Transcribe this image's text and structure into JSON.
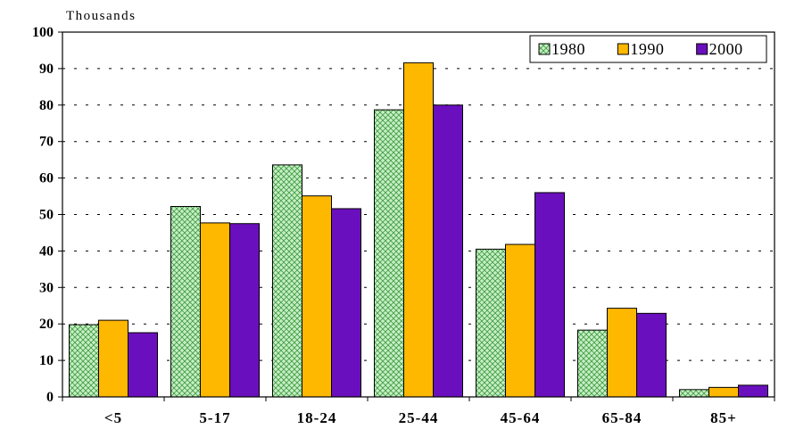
{
  "chart_data": {
    "type": "bar",
    "ylabel": "Thousands",
    "categories": [
      "<5",
      "5-17",
      "18-24",
      "25-44",
      "45-64",
      "65-84",
      "85+"
    ],
    "series": [
      {
        "name": "1980",
        "values": [
          19.8,
          52.2,
          63.6,
          78.7,
          40.5,
          18.3,
          2.0
        ],
        "color": "#b3e6b3",
        "pattern": "crosshatch"
      },
      {
        "name": "1990",
        "values": [
          21.0,
          47.7,
          55.1,
          91.6,
          41.8,
          24.3,
          2.6
        ],
        "color": "#ffb800"
      },
      {
        "name": "2000",
        "values": [
          17.6,
          47.5,
          51.6,
          80.0,
          56.0,
          22.9,
          3.2
        ],
        "color": "#6a0fbd"
      }
    ],
    "ylim": [
      0,
      100
    ],
    "yticks": [
      0,
      10,
      20,
      30,
      40,
      50,
      60,
      70,
      80,
      90,
      100
    ],
    "grid": "dashed horizontal",
    "legend_position": "top-right"
  }
}
